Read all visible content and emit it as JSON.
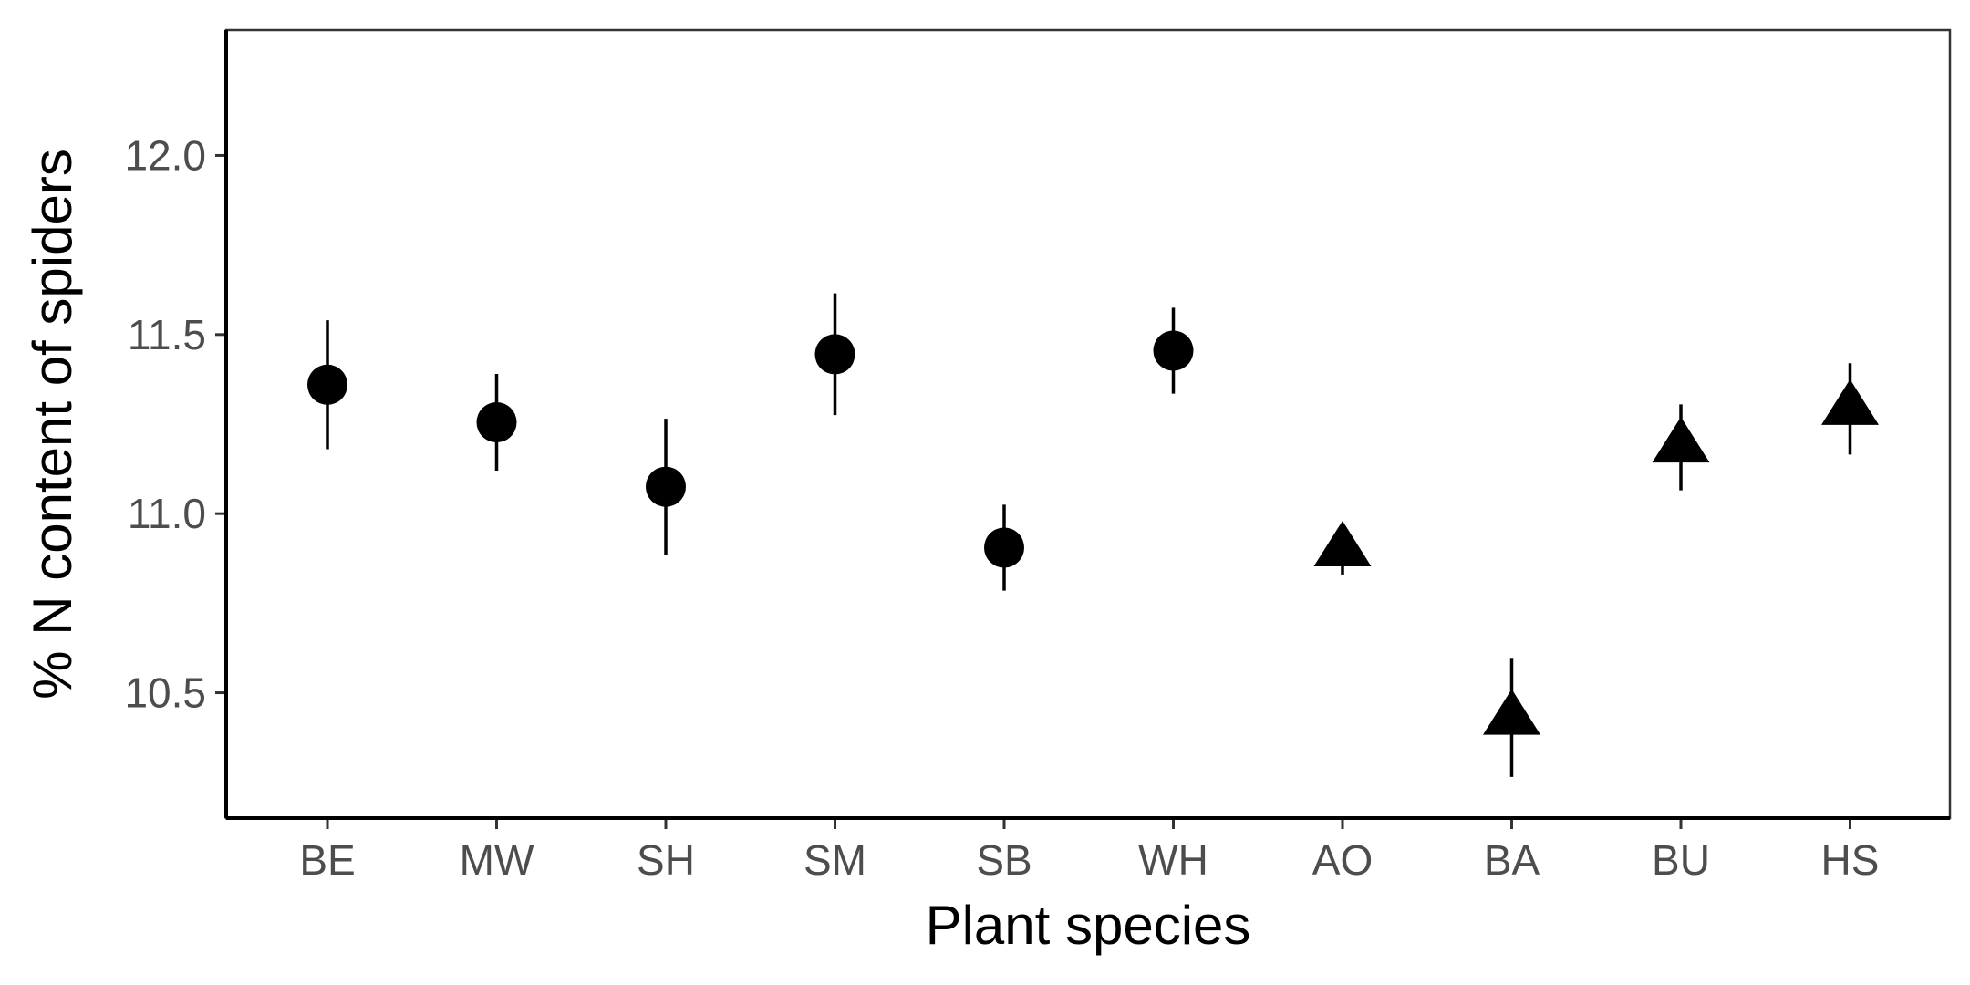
{
  "chart_data": {
    "type": "scatter",
    "xlabel": "Plant species",
    "ylabel": "% N content of spiders",
    "categories": [
      "BE",
      "MW",
      "SH",
      "SM",
      "SB",
      "WH",
      "AO",
      "BA",
      "BU",
      "HS"
    ],
    "values": [
      11.36,
      11.255,
      11.075,
      11.445,
      10.905,
      11.455,
      10.9,
      10.43,
      11.19,
      11.295
    ],
    "error_low": [
      11.18,
      11.12,
      10.885,
      11.275,
      10.785,
      11.335,
      10.83,
      10.265,
      11.065,
      11.165
    ],
    "error_high": [
      11.54,
      11.39,
      11.265,
      11.615,
      11.025,
      11.575,
      10.905,
      10.595,
      11.305,
      11.42
    ],
    "markers": [
      "circle",
      "circle",
      "circle",
      "circle",
      "circle",
      "circle",
      "triangle",
      "triangle",
      "triangle",
      "triangle"
    ],
    "yticks": [
      "10.5",
      "11.0",
      "11.5",
      "12.0"
    ],
    "ylim": [
      10.15,
      12.35
    ],
    "grid": false,
    "legend": "none",
    "colors": {
      "marker": "#000000",
      "tick_label": "#4d4d4d",
      "axis_title": "#000000"
    }
  }
}
